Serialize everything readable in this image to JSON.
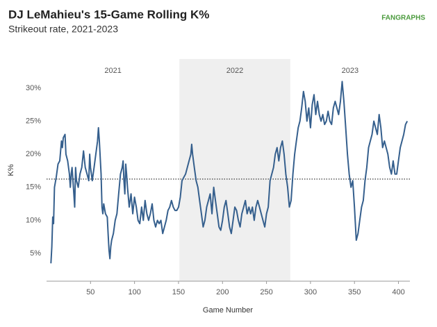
{
  "chart_data": {
    "type": "line",
    "title": "DJ LeMahieu's 15-Game Rolling K%",
    "subtitle": "Strikeout rate, 2021-2023",
    "logo": "FANGRAPHS",
    "xlabel": "Game Number",
    "ylabel": "K%",
    "xlim": [
      0,
      413
    ],
    "ylim": [
      0.8,
      34.4
    ],
    "xticks": [
      50,
      100,
      150,
      200,
      250,
      300,
      350,
      400
    ],
    "yticks": [
      {
        "value": 5,
        "label": "5%"
      },
      {
        "value": 10,
        "label": "10%"
      },
      {
        "value": 15,
        "label": "15%"
      },
      {
        "value": 20,
        "label": "20%"
      },
      {
        "value": 25,
        "label": "25%"
      },
      {
        "value": 30,
        "label": "30%"
      }
    ],
    "reference_line": 16.24,
    "periods": [
      {
        "label": "2021",
        "start": 0,
        "end": 151,
        "shaded": false
      },
      {
        "label": "2022",
        "start": 151,
        "end": 277,
        "shaded": true
      },
      {
        "label": "2023",
        "start": 277,
        "end": 413,
        "shaded": false
      }
    ],
    "series": [
      {
        "name": "K%",
        "color": "#355f8d",
        "x": [
          5,
          6,
          7,
          8,
          9,
          11,
          13,
          15,
          17,
          18,
          19,
          21,
          22,
          24,
          26,
          27,
          28,
          29,
          30,
          31,
          32,
          33,
          34,
          36,
          38,
          40,
          42,
          44,
          46,
          48,
          49,
          50,
          52,
          54,
          56,
          58,
          59,
          60,
          62,
          63,
          64,
          65,
          67,
          69,
          70,
          71,
          72,
          73,
          74,
          76,
          78,
          80,
          82,
          84,
          86,
          87,
          88,
          89,
          90,
          91,
          92,
          94,
          96,
          98,
          100,
          102,
          104,
          106,
          108,
          110,
          112,
          114,
          116,
          118,
          120,
          122,
          124,
          126,
          128,
          130,
          132,
          134,
          136,
          138,
          140,
          142,
          144,
          146,
          148,
          150,
          152,
          154,
          156,
          158,
          160,
          162,
          164,
          165,
          166,
          168,
          170,
          172,
          174,
          176,
          178,
          180,
          182,
          184,
          186,
          188,
          190,
          192,
          194,
          196,
          198,
          200,
          202,
          204,
          206,
          208,
          210,
          212,
          214,
          216,
          218,
          220,
          222,
          224,
          226,
          228,
          230,
          232,
          234,
          236,
          238,
          240,
          242,
          244,
          246,
          248,
          250,
          252,
          254,
          256,
          258,
          260,
          262,
          264,
          266,
          268,
          270,
          272,
          274,
          276,
          278,
          280,
          282,
          284,
          286,
          288,
          290,
          292,
          294,
          296,
          298,
          300,
          302,
          304,
          306,
          308,
          310,
          312,
          314,
          316,
          318,
          320,
          322,
          324,
          326,
          328,
          330,
          332,
          334,
          336,
          338,
          340,
          342,
          344,
          346,
          348,
          350,
          352,
          354,
          356,
          358,
          360,
          362,
          364,
          366,
          368,
          370,
          372,
          374,
          376,
          378,
          380,
          382,
          384,
          386,
          388,
          390,
          392,
          394,
          396,
          398,
          400,
          402,
          404,
          406,
          408,
          410
        ],
        "values": [
          3.5,
          6,
          10.5,
          9.5,
          15,
          16.5,
          18.5,
          19,
          22,
          21,
          22.5,
          23,
          20,
          19,
          17,
          15,
          17,
          18,
          16,
          14,
          12,
          18,
          16,
          15,
          17,
          18,
          20.5,
          18,
          17,
          16,
          20,
          18,
          16,
          18,
          20,
          22,
          24,
          22,
          17,
          12,
          11,
          12.5,
          11,
          10.5,
          8,
          5.5,
          4.2,
          6,
          7,
          8,
          10,
          11,
          14,
          17,
          18,
          19,
          16,
          14,
          18.5,
          17,
          15,
          12,
          14,
          11,
          13.5,
          12,
          10,
          9.5,
          12,
          10,
          13,
          11,
          10,
          11,
          12.5,
          10,
          9,
          10,
          9.5,
          10,
          8,
          9,
          10,
          11.5,
          12,
          13,
          12,
          11.5,
          11.5,
          12,
          13.5,
          16,
          16.5,
          17,
          18,
          19,
          20,
          21.5,
          20,
          18,
          16,
          15,
          13,
          11,
          9,
          10,
          12,
          13,
          14,
          11,
          15,
          13,
          11,
          9,
          8.5,
          10,
          12,
          13,
          11,
          9,
          8,
          10,
          12,
          11.5,
          10,
          9,
          11,
          12,
          13,
          11,
          12,
          11,
          12,
          10,
          12,
          13,
          12,
          11,
          10,
          9,
          11,
          12,
          16,
          17,
          18,
          20,
          21,
          19,
          21,
          22,
          20,
          17,
          15,
          12,
          13,
          17,
          20,
          22,
          24,
          25,
          27,
          29.5,
          28,
          25,
          27,
          24,
          27.5,
          29,
          26,
          28,
          26,
          25,
          26,
          24.5,
          25,
          26.5,
          25,
          24.5,
          27,
          28,
          27,
          26,
          28,
          31,
          28,
          24,
          20,
          17,
          15,
          16,
          12,
          7,
          8,
          10,
          12,
          13,
          16,
          18,
          21,
          22,
          23,
          25,
          24,
          23,
          26,
          24,
          21,
          22,
          21,
          20,
          18,
          17,
          19,
          17,
          17,
          19,
          21,
          22,
          23,
          24.5,
          25
        ]
      }
    ]
  }
}
